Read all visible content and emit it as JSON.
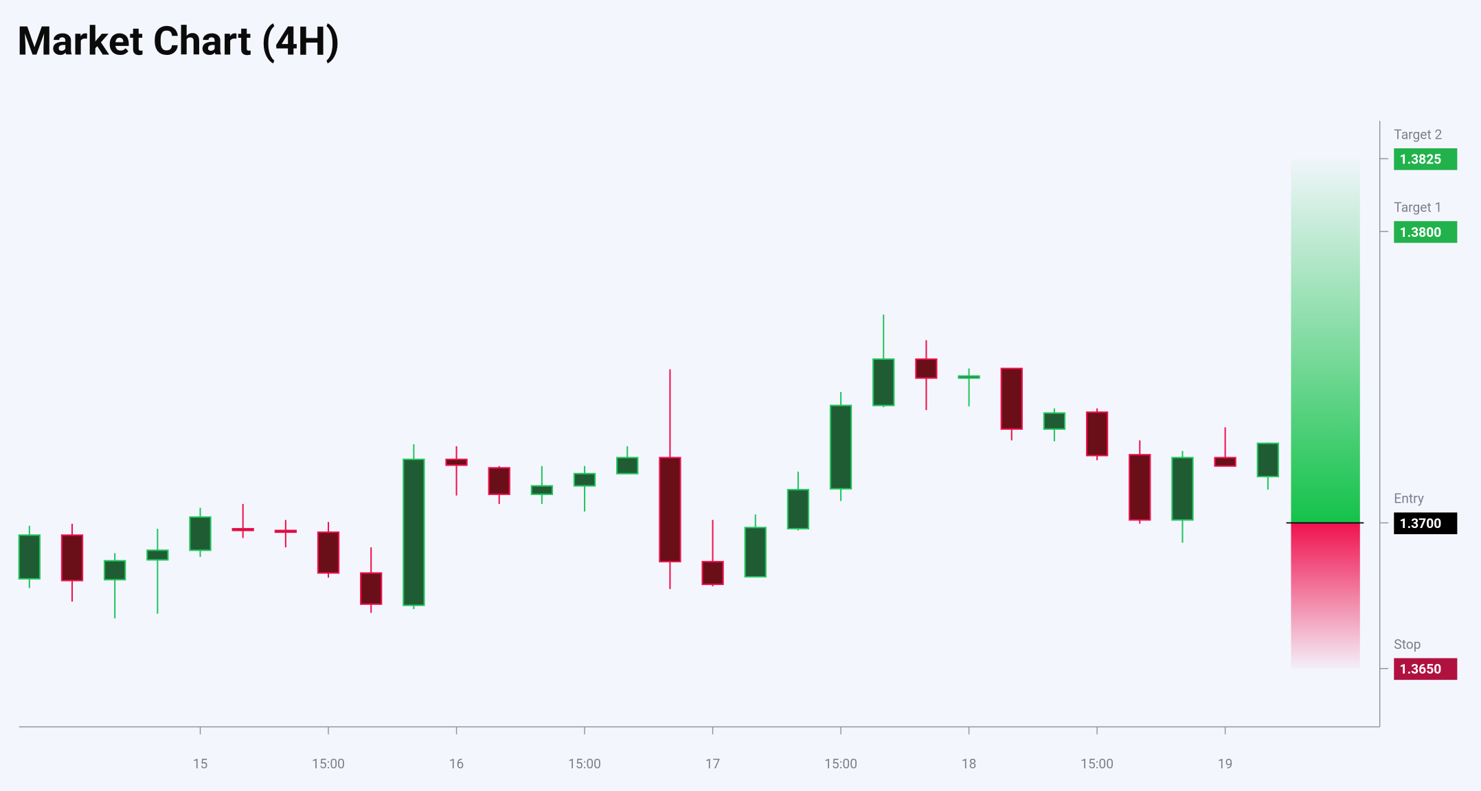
{
  "chart_data": {
    "type": "candlestick",
    "title": "Market Chart (4H)",
    "x": [
      0,
      1,
      2,
      3,
      4,
      5,
      6,
      7,
      8,
      9,
      10,
      11,
      12,
      13,
      14,
      15,
      16,
      17,
      18,
      19,
      20,
      21,
      22,
      23,
      24,
      25,
      26,
      27,
      28,
      29
    ],
    "open": [
      1.36808,
      1.36958,
      1.36805,
      1.36873,
      1.36906,
      1.3698,
      1.36974,
      1.36968,
      1.36828,
      1.36717,
      1.37218,
      1.37189,
      1.37098,
      1.37127,
      1.37169,
      1.37224,
      1.36867,
      1.36815,
      1.3698,
      1.37117,
      1.37403,
      1.37562,
      1.37497,
      1.3753,
      1.37322,
      1.3738,
      1.37234,
      1.3701,
      1.37224,
      1.37159
    ],
    "high": [
      1.3699,
      1.36997,
      1.36896,
      1.3698,
      1.37052,
      1.37065,
      1.3701,
      1.37003,
      1.36916,
      1.3727,
      1.37263,
      1.37195,
      1.37195,
      1.37195,
      1.37263,
      1.37527,
      1.3701,
      1.37029,
      1.37176,
      1.37449,
      1.37715,
      1.37627,
      1.3753,
      1.3753,
      1.37393,
      1.37393,
      1.37283,
      1.37247,
      1.37328,
      1.37276
    ],
    "low": [
      1.36776,
      1.3673,
      1.36672,
      1.36688,
      1.36883,
      1.36948,
      1.36916,
      1.36812,
      1.36691,
      1.36704,
      1.37094,
      1.37065,
      1.37065,
      1.37039,
      1.37169,
      1.36773,
      1.36782,
      1.36815,
      1.36974,
      1.37075,
      1.37397,
      1.37387,
      1.374,
      1.37283,
      1.3728,
      1.37215,
      1.36997,
      1.36932,
      1.37195,
      1.37114
    ],
    "close": [
      1.36958,
      1.36802,
      1.3687,
      1.36906,
      1.3702,
      1.36974,
      1.36968,
      1.36828,
      1.36721,
      1.37218,
      1.37198,
      1.37098,
      1.37127,
      1.37169,
      1.37224,
      1.36867,
      1.36789,
      1.36984,
      1.37114,
      1.37403,
      1.37562,
      1.37497,
      1.37504,
      1.37322,
      1.37377,
      1.37231,
      1.3701,
      1.37224,
      1.37195,
      1.37273
    ],
    "up_color": "#22c55e",
    "up_fill": "#205c33",
    "down_color": "#f0124f",
    "down_fill": "#6a0f17",
    "xlim": [
      -0.243,
      31.62
    ],
    "xticks": [
      {
        "value": 4,
        "label": "15"
      },
      {
        "value": 7,
        "label": "15:00"
      },
      {
        "value": 10,
        "label": "16"
      },
      {
        "value": 13,
        "label": "15:00"
      },
      {
        "value": 16,
        "label": "17"
      },
      {
        "value": 19,
        "label": "15:00"
      },
      {
        "value": 22,
        "label": "18"
      },
      {
        "value": 25,
        "label": "15:00"
      },
      {
        "value": 28,
        "label": "19"
      }
    ],
    "ylim": [
      1.363,
      1.3838
    ],
    "levels": [
      {
        "name": "Target 2",
        "value": 1.3825,
        "label": "1.3825",
        "color": "#22b24c"
      },
      {
        "name": "Target 1",
        "value": 1.38,
        "label": "1.3800",
        "color": "#22b24c"
      },
      {
        "name": "Entry",
        "value": 1.37,
        "label": "1.3700",
        "color": "#000000"
      },
      {
        "name": "Stop",
        "value": 1.365,
        "label": "1.3650",
        "color": "#b0123f"
      }
    ]
  }
}
